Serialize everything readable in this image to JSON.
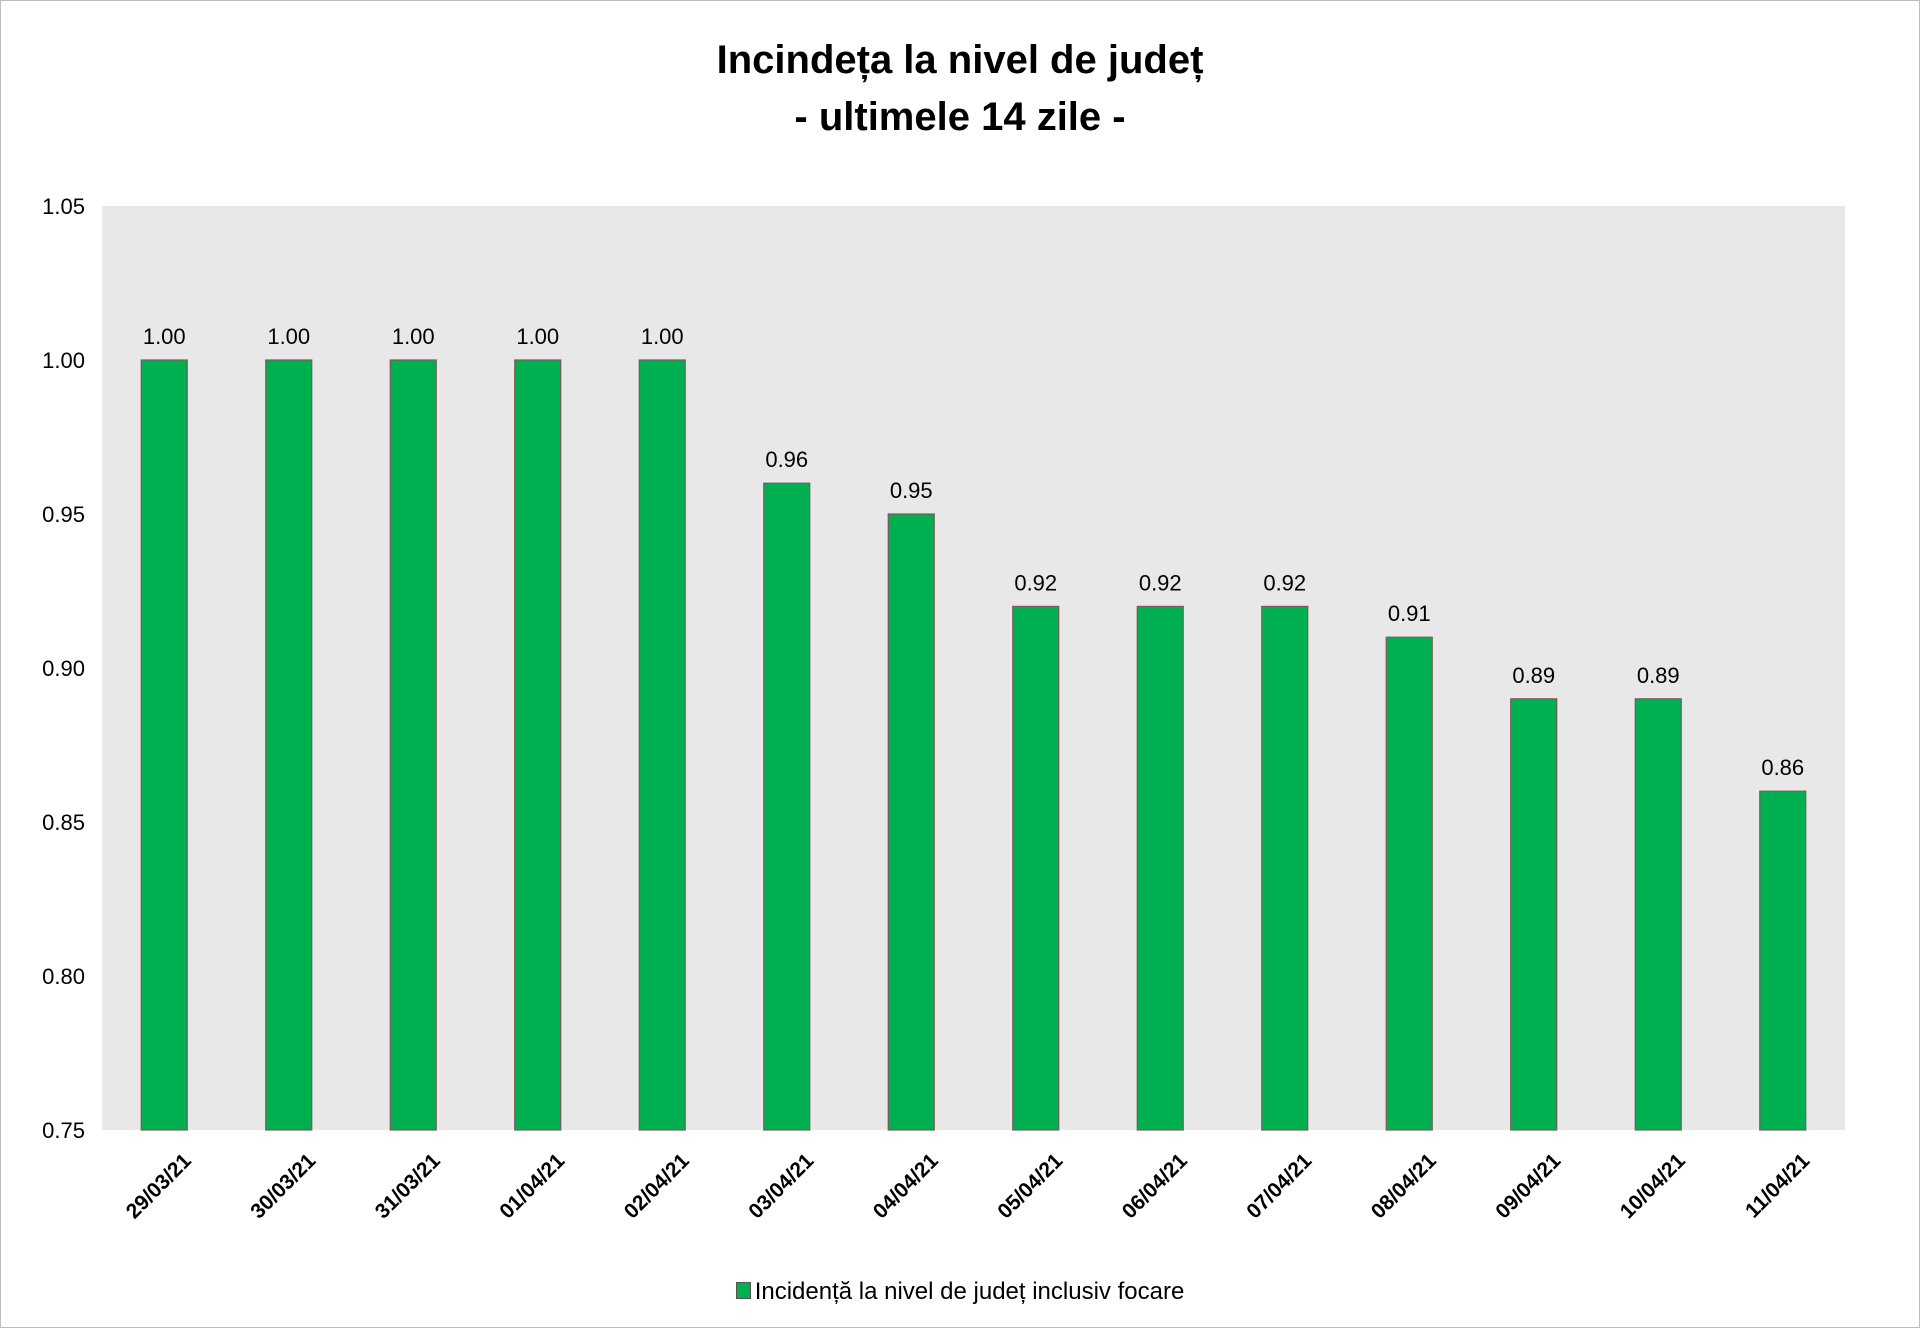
{
  "chart_data": {
    "type": "bar",
    "title": "Incindeța la nivel de județ",
    "subtitle": "- ultimele 14 zile -",
    "categories": [
      "29/03/21",
      "30/03/21",
      "31/03/21",
      "01/04/21",
      "02/04/21",
      "03/04/21",
      "04/04/21",
      "05/04/21",
      "06/04/21",
      "07/04/21",
      "08/04/21",
      "09/04/21",
      "10/04/21",
      "11/04/21"
    ],
    "series": [
      {
        "name": "Incidență la nivel de județ inclusiv focare",
        "values": [
          1.0,
          1.0,
          1.0,
          1.0,
          1.0,
          0.96,
          0.95,
          0.92,
          0.92,
          0.92,
          0.91,
          0.89,
          0.89,
          0.86
        ],
        "labels": [
          "1.00",
          "1.00",
          "1.00",
          "1.00",
          "1.00",
          "0.96",
          "0.95",
          "0.92",
          "0.92",
          "0.92",
          "0.91",
          "0.89",
          "0.89",
          "0.86"
        ],
        "color": "#00b050"
      }
    ],
    "ylim": [
      0.75,
      1.05
    ],
    "yticks": [
      0.75,
      0.8,
      0.85,
      0.9,
      0.95,
      1.0,
      1.05
    ],
    "ytick_labels": [
      "0.75",
      "0.80",
      "0.85",
      "0.90",
      "0.95",
      "1.00",
      "1.05"
    ],
    "xlabel": "",
    "ylabel": "",
    "grid": false,
    "plot_background": "#e8e8e8",
    "legend_position": "bottom"
  }
}
